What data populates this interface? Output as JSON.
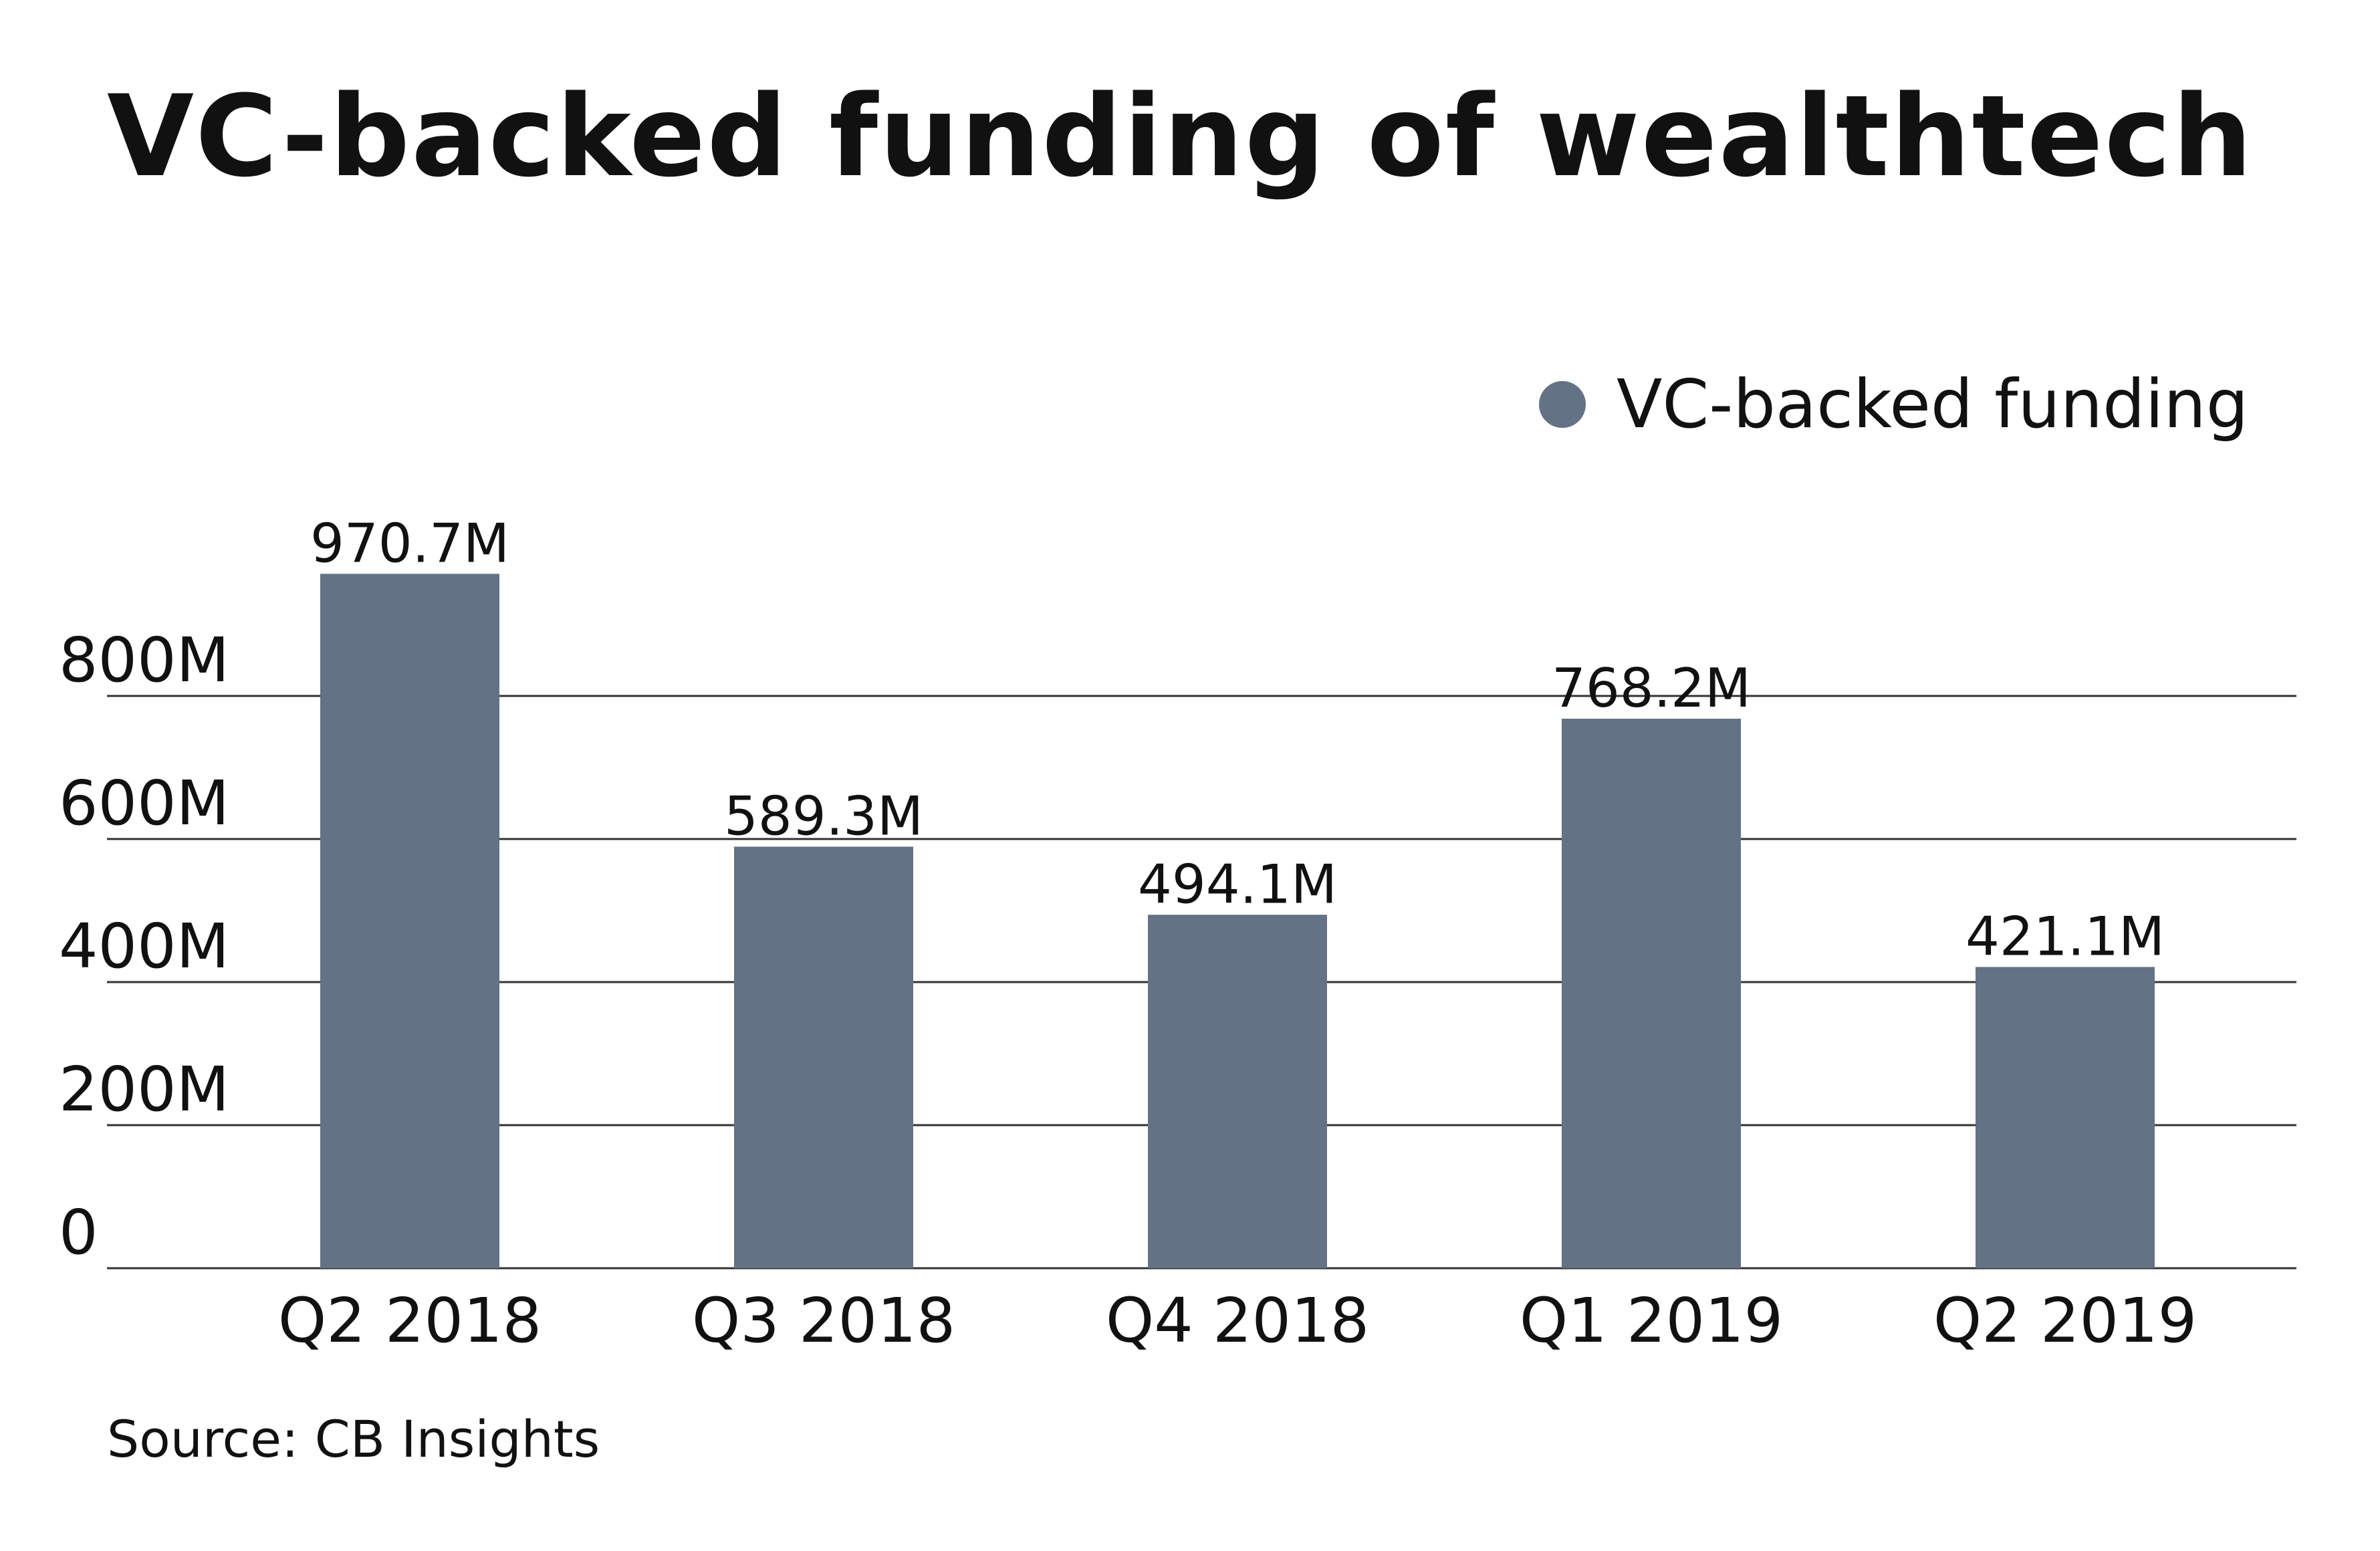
{
  "chart_data": {
    "type": "bar",
    "title": "VC-backed funding of wealthtech",
    "categories": [
      "Q2 2018",
      "Q3 2018",
      "Q4 2018",
      "Q1 2019",
      "Q2 2019"
    ],
    "series": [
      {
        "name": "VC-backed funding",
        "values": [
          970.7,
          589.3,
          494.1,
          768.2,
          421.1
        ],
        "data_labels": [
          "970.7M",
          "589.3M",
          "494.1M",
          "768.2M",
          "421.1M"
        ],
        "color": "#637285"
      }
    ],
    "yticks": [
      0,
      200,
      400,
      600,
      800
    ],
    "ytick_labels": [
      "0",
      "200M",
      "400M",
      "600M",
      "800M"
    ],
    "ylim": [
      0,
      1000
    ],
    "xlabel": "",
    "ylabel": "",
    "grid": true,
    "legend_position": "top-right",
    "source": "Source: CB Insights",
    "colors": {
      "bar": "#637285",
      "gridline": "#333333",
      "text": "#111111"
    }
  }
}
